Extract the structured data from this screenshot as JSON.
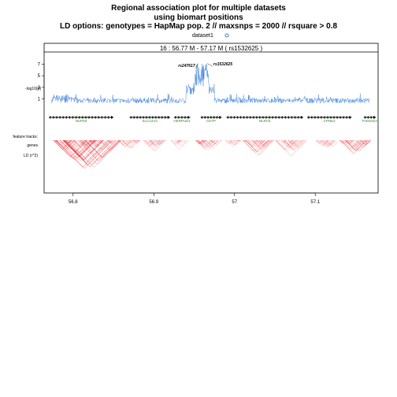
{
  "chart_data": {
    "type": "line",
    "title": "Regional association plot for multiple datasets",
    "subtitle": "using biomart positions",
    "ld_options": "LD options:  genotypes = HapMap pop. 2 // maxsnps = 2000 // rsquare > 0.8",
    "legend": [
      {
        "name": "dataset1",
        "color": "#3a7fdc"
      }
    ],
    "region_label": "16 : 56.77 M - 57.17 M    ( rs1532625 )",
    "ylabel": "-log10(p)",
    "y_ticks": [
      1,
      3,
      5,
      7
    ],
    "ylim": [
      0,
      8
    ],
    "x_ticks": [
      56.8,
      56.9,
      57,
      57.1
    ],
    "x_tick_labels": [
      "56.8",
      "56.9",
      "57",
      "57.1"
    ],
    "xlim": [
      56.77,
      57.17
    ],
    "track_labels": {
      "features": "feature tracks:",
      "genes": "genes",
      "ld": "LD (r^2)"
    },
    "annotated_snps": [
      {
        "name": "rs247617",
        "x": 56.955
      },
      {
        "name": "rs1532625",
        "x": 56.966
      }
    ],
    "genes": [
      {
        "name": "NUP93",
        "start": 56.77,
        "end": 56.85
      },
      {
        "name": "SLC12A3",
        "start": 56.87,
        "end": 56.92
      },
      {
        "name": "HERPUD1",
        "start": 56.925,
        "end": 56.945
      },
      {
        "name": "CETP",
        "start": 56.958,
        "end": 56.984
      },
      {
        "name": "NLRC5",
        "start": 56.99,
        "end": 57.085
      },
      {
        "name": "CPNE2",
        "start": 57.09,
        "end": 57.145
      },
      {
        "name": "FAM192A",
        "start": 57.16,
        "end": 57.175
      }
    ],
    "ld_blocks": [
      {
        "start": 56.775,
        "end": 56.86,
        "intensity": 1.0
      },
      {
        "start": 56.855,
        "end": 56.885,
        "intensity": 0.6
      },
      {
        "start": 56.885,
        "end": 56.915,
        "intensity": 0.5
      },
      {
        "start": 56.92,
        "end": 56.945,
        "intensity": 0.45
      },
      {
        "start": 56.95,
        "end": 56.985,
        "intensity": 0.7
      },
      {
        "start": 56.988,
        "end": 57.01,
        "intensity": 0.55
      },
      {
        "start": 57.01,
        "end": 57.05,
        "intensity": 0.7
      },
      {
        "start": 57.05,
        "end": 57.09,
        "intensity": 0.55
      },
      {
        "start": 57.1,
        "end": 57.13,
        "intensity": 0.5
      },
      {
        "start": 57.13,
        "end": 57.17,
        "intensity": 0.75
      }
    ]
  }
}
